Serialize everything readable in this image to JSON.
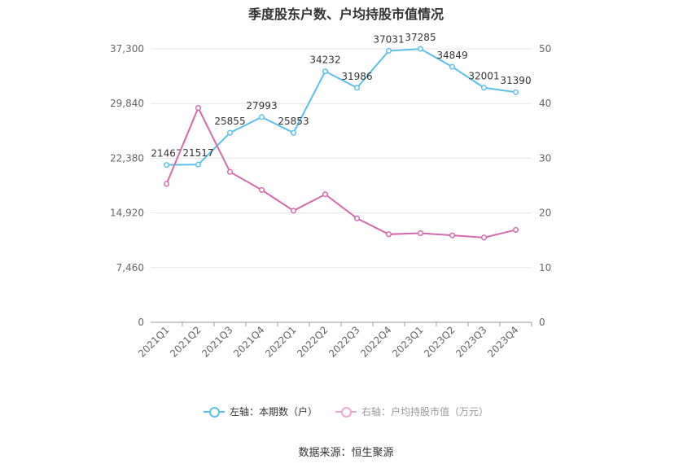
{
  "title": "季度股东户数、户均持股市值情况",
  "source": "数据来源：恒生聚源",
  "colors": {
    "left_series": "#5bc0eb",
    "right_series": "#d46aae",
    "grid": "#e6e6e6",
    "axis_text": "#666666"
  },
  "chart_data": {
    "type": "line",
    "categories": [
      "2021Q1",
      "2021Q2",
      "2021Q3",
      "2021Q4",
      "2022Q1",
      "2022Q2",
      "2022Q3",
      "2022Q4",
      "2023Q1",
      "2023Q2",
      "2023Q3",
      "2023Q4"
    ],
    "left_axis": {
      "min": 0,
      "max": 37300,
      "ticks": [
        0,
        7460,
        14920,
        22380,
        29840,
        37300
      ],
      "tick_labels": [
        "0",
        "7,460",
        "14,920",
        "22,380",
        "29,840",
        "37,300"
      ]
    },
    "right_axis": {
      "min": 0,
      "max": 50,
      "ticks": [
        0,
        10,
        20,
        30,
        40,
        50
      ],
      "tick_labels": [
        "0",
        "10",
        "20",
        "30",
        "40",
        "50"
      ]
    },
    "grid": true,
    "legend_position": "bottom",
    "series": [
      {
        "name": "左轴：本期数（户）",
        "axis": "left",
        "values": [
          21467,
          21517,
          25855,
          27993,
          25853,
          34232,
          31986,
          37031,
          37285,
          34849,
          32001,
          31390
        ],
        "labels": [
          "21467",
          "21517",
          "25855",
          "27993",
          "25853",
          "34232",
          "31986",
          "37031",
          "37285",
          "34849",
          "32001",
          "31390"
        ]
      },
      {
        "name": "右轴：户均持股市值（万元）",
        "axis": "right",
        "values": [
          25.3,
          39.2,
          27.5,
          24.2,
          20.4,
          23.4,
          19.0,
          16.1,
          16.3,
          15.9,
          15.5,
          16.9
        ]
      }
    ]
  }
}
